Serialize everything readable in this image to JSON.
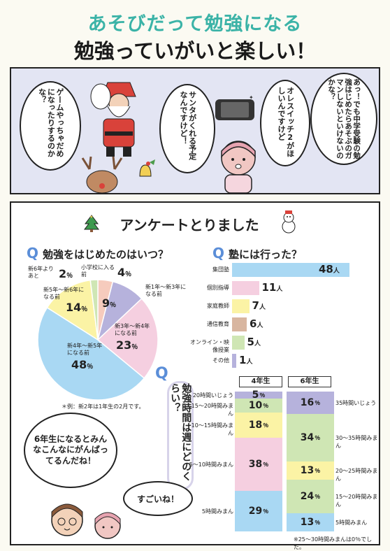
{
  "header": {
    "title": "あそびだって勉強になる",
    "subtitle": "勉強っていがいと楽しい！"
  },
  "comic": {
    "bubble_child": "あっ！でも中学受験の勉強はじめたらあそぶのガマンしないといけないのかな？",
    "bubble_switch": "オレスイッチ2がほしいんですけど",
    "bubble_santa": "サンタがくれる予定なんですけど！",
    "bubble_game": "ゲームやっちゃだめになったりするのかな？"
  },
  "survey": {
    "title": "アンケートとりました",
    "q1": "勉強をはじめたのはいつ？",
    "q2": "塾には行った？",
    "q3": "勉強時間は週にどのくらい？",
    "pie_note": "＊例：新2年は1年生の2月です。",
    "grid_note": "※25～30時間みまんは0％でした。",
    "unit_person": "人",
    "unit_pct": "％",
    "q_mark": "Q",
    "col_4th": "4年生",
    "col_6th": "6年生"
  },
  "comic_bottom": {
    "bubble_a": "6年生になるとみんなこんなにがんばってるんだね！",
    "bubble_b": "すごいね！"
  },
  "colors": {
    "blue": "#a9d8f3",
    "pink": "#f5cfe0",
    "yellow": "#fbf3a5",
    "purple": "#b6b2dc",
    "green": "#cfe6b4",
    "peach": "#f6cbbd",
    "brown": "#d8b6a0",
    "teal": "#3bb3a7"
  },
  "chart_data": [
    {
      "type": "pie",
      "title": "勉強をはじめたのはいつ？",
      "unit": "%",
      "slices": [
        {
          "label": "小学校に入る前",
          "value": 4,
          "color": "#f6cbbd"
        },
        {
          "label": "新1年～新3年になる前",
          "value": 9,
          "color": "#b6b2dc"
        },
        {
          "label": "新3年～新4年になる前",
          "value": 23,
          "color": "#f5cfe0"
        },
        {
          "label": "新4年～新5年になる前",
          "value": 48,
          "color": "#a9d8f3"
        },
        {
          "label": "新5年～新6年になる前",
          "value": 14,
          "color": "#fbf3a5"
        },
        {
          "label": "新6年よりあと",
          "value": 2,
          "color": "#cfe6b4"
        }
      ]
    },
    {
      "type": "bar",
      "title": "塾には行った？",
      "unit": "人",
      "categories": [
        "集団塾",
        "個別指導",
        "家庭教師",
        "通信教育",
        "オンライン・映像授業",
        "その他"
      ],
      "values": [
        48,
        11,
        7,
        6,
        5,
        1
      ],
      "colors": [
        "#a9d8f3",
        "#f5cfe0",
        "#fbf3a5",
        "#d8b6a0",
        "#cfe6b4",
        "#b6b2dc"
      ],
      "xlim": [
        0,
        48
      ]
    },
    {
      "type": "bar",
      "stacked": true,
      "title": "勉強時間は週にどのくらい？",
      "unit": "%",
      "categories": [
        "4年生",
        "6年生"
      ],
      "series": [
        {
          "name": "5時間みまん",
          "values": [
            29,
            13
          ],
          "color": "#a9d8f3"
        },
        {
          "name": "5～10時間みまん",
          "values": [
            38,
            0
          ],
          "color": "#f5cfe0"
        },
        {
          "name": "10～15時間みまん",
          "values": [
            18,
            0
          ],
          "color": "#fbf3a5"
        },
        {
          "name": "15～20時間みまん",
          "values": [
            10,
            24
          ],
          "color": "#cfe6b4"
        },
        {
          "name": "20時間いじょう",
          "values": [
            5,
            0
          ],
          "color": "#b6b2dc"
        },
        {
          "name": "20～25時間みまん",
          "values": [
            0,
            13
          ],
          "color": "#fbf3a5"
        },
        {
          "name": "30～35時間みまん",
          "values": [
            0,
            34
          ],
          "color": "#cfe6b4"
        },
        {
          "name": "35時間いじょう",
          "values": [
            0,
            16
          ],
          "color": "#b6b2dc"
        }
      ]
    }
  ]
}
